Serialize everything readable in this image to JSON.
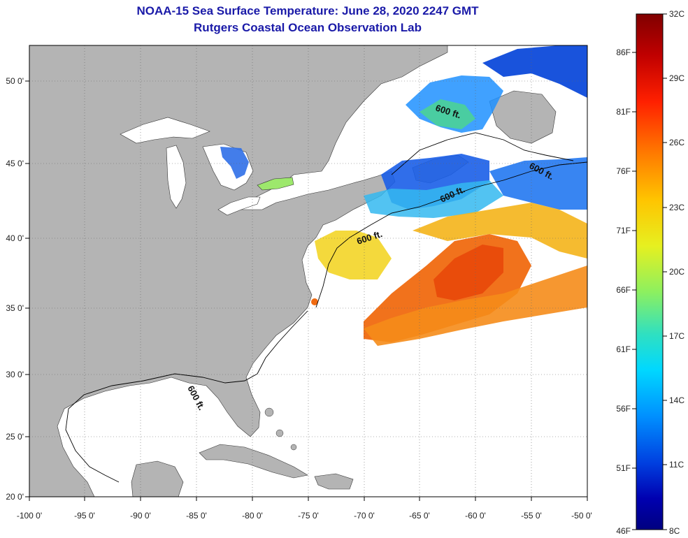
{
  "header": {
    "title": "NOAA-15 Sea Surface Temperature:  June 28, 2020 2247 GMT",
    "subtitle": "Rutgers Coastal Ocean Observation Lab"
  },
  "axes": {
    "lon_ticks": [
      "-100 0'",
      "-95 0'",
      "-90 0'",
      "-85 0'",
      "-80 0'",
      "-75 0'",
      "-70 0'",
      "-65 0'",
      "-60 0'",
      "-55 0'",
      "-50 0'"
    ],
    "lat_ticks": [
      "50 0'",
      "45 0'",
      "40 0'",
      "35 0'",
      "30 0'",
      "25 0'",
      "20 0'"
    ]
  },
  "contours": {
    "depth_labels": [
      "600 ft.",
      "600 ft.",
      "600 ft.",
      "600 ft.",
      "600 ft."
    ]
  },
  "colorbar": {
    "celsius_labels": [
      "32C",
      "29C",
      "26C",
      "23C",
      "20C",
      "17C",
      "14C",
      "11C",
      "8C"
    ],
    "fahrenheit_labels": [
      "86F",
      "81F",
      "76F",
      "71F",
      "66F",
      "61F",
      "56F",
      "51F",
      "46F"
    ],
    "colors": [
      "#800000",
      "#c00000",
      "#ff2000",
      "#ff7a00",
      "#ffc400",
      "#e6f020",
      "#8cf060",
      "#30e0c0",
      "#00d8ff",
      "#0090ff",
      "#0040e0",
      "#0000b0",
      "#000080"
    ]
  },
  "colors": {
    "land": "#b4b4b4",
    "ocean_no_data": "#ffffff",
    "title": "#1a1aa8"
  }
}
